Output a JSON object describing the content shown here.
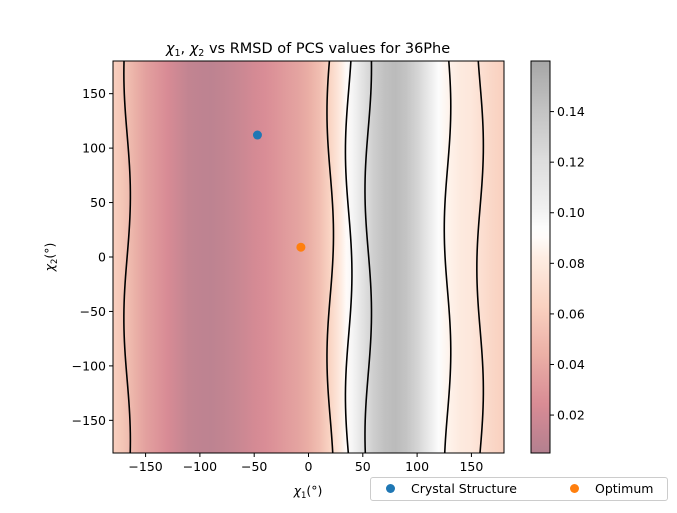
{
  "chart_data": {
    "type": "heatmap",
    "title": "χ1, χ2 vs RMSD of PCS values for 36Phe",
    "title_parts": {
      "chi1": "χ",
      "sub1": "1",
      "sep": ", ",
      "chi2": "χ",
      "sub2": "2",
      "rest": " vs RMSD of PCS values for 36Phe"
    },
    "xlabel": "χ1(°)",
    "xlabel_parts": {
      "chi": "χ",
      "sub": "1",
      "unit": "(°)"
    },
    "ylabel": "χ2(°)",
    "ylabel_parts": {
      "chi": "χ",
      "sub": "2",
      "unit": "(°)"
    },
    "xlim": [
      -180,
      180
    ],
    "ylim": [
      -180,
      180
    ],
    "xticks": [
      -150,
      -100,
      -50,
      0,
      50,
      100,
      150
    ],
    "xtick_labels": [
      "−150",
      "−100",
      "−50",
      "0",
      "50",
      "100",
      "150"
    ],
    "yticks": [
      -150,
      -100,
      -50,
      0,
      50,
      100,
      150
    ],
    "ytick_labels": [
      "−150",
      "−100",
      "−50",
      "0",
      "50",
      "100",
      "150"
    ],
    "colorbar": {
      "range": [
        0.005,
        0.16
      ],
      "ticks": [
        0.02,
        0.04,
        0.06,
        0.08,
        0.1,
        0.12,
        0.14
      ],
      "tick_labels": [
        "0.02",
        "0.04",
        "0.06",
        "0.08",
        "0.10",
        "0.12",
        "0.14"
      ],
      "colormap": "RdGy (reversed), alpha 0.5"
    },
    "rmsd_profile_over_chi1": {
      "x": [
        -180,
        -170,
        -160,
        -150,
        -140,
        -130,
        -120,
        -110,
        -100,
        -90,
        -80,
        -70,
        -60,
        -50,
        -40,
        -30,
        -20,
        -10,
        0,
        10,
        20,
        30,
        35,
        40,
        50,
        60,
        70,
        80,
        90,
        100,
        110,
        120,
        130,
        140,
        150,
        160,
        170,
        180
      ],
      "values": [
        0.062,
        0.055,
        0.045,
        0.036,
        0.03,
        0.024,
        0.018,
        0.013,
        0.011,
        0.01,
        0.012,
        0.015,
        0.018,
        0.022,
        0.025,
        0.029,
        0.033,
        0.037,
        0.043,
        0.052,
        0.065,
        0.082,
        0.09,
        0.098,
        0.116,
        0.132,
        0.142,
        0.146,
        0.14,
        0.128,
        0.11,
        0.094,
        0.085,
        0.08,
        0.078,
        0.072,
        0.066,
        0.062
      ]
    },
    "contour_lines_chi1": [
      -167,
      20,
      37,
      55,
      128,
      158
    ],
    "points": [
      {
        "name": "Crystal Structure",
        "x": -47,
        "y": 112,
        "color": "#1f77b4"
      },
      {
        "name": "Optimum",
        "x": -7,
        "y": 9,
        "color": "#ff7f0e"
      }
    ],
    "legend": {
      "placement": "below-right",
      "columns": 2
    }
  }
}
